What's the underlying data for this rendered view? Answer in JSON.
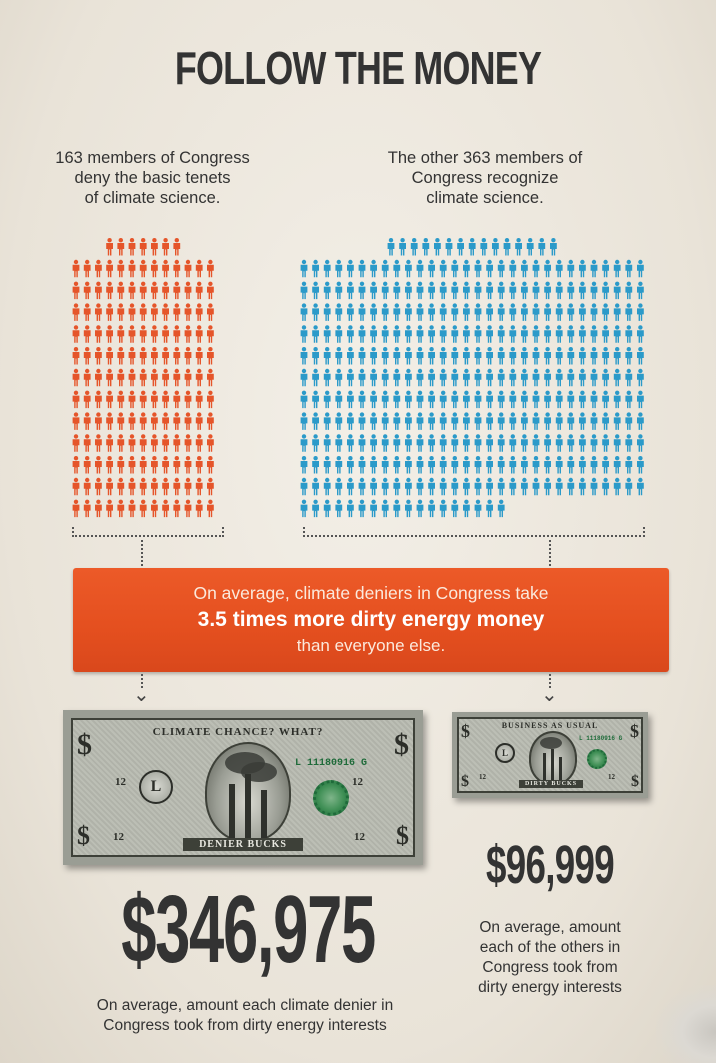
{
  "title": "FOLLOW THE MONEY",
  "left_group": {
    "caption_lines": [
      "163 members of Congress",
      "deny the basic tenets",
      "of climate science."
    ],
    "count": 163,
    "color": "#e5552a",
    "icon": "person-icon"
  },
  "right_group": {
    "caption_lines": [
      "The other 363 members of",
      "Congress recognize",
      "climate science."
    ],
    "count": 363,
    "color": "#2b9ac9",
    "icon": "person-icon"
  },
  "banner": {
    "line1": "On average, climate deniers in Congress take",
    "line2": "3.5 times more dirty energy money",
    "line3": "than everyone else.",
    "color": "#e5552a"
  },
  "left_bill": {
    "top_text": "CLIMATE CHANCE? WHAT?",
    "bottom_text": "DENIER BUCKS",
    "serial": "L 11180916 G",
    "denomination": "12",
    "seal_letter": "L"
  },
  "right_bill": {
    "top_text": "BUSINESS AS USUAL",
    "bottom_text": "DIRTY BUCKS",
    "serial": "L 11180916 G",
    "denomination": "12",
    "seal_letter": "L"
  },
  "left_amount": {
    "value": "$346,975",
    "description_lines": [
      "On average, amount each climate denier in",
      "Congress took from dirty energy interests"
    ]
  },
  "right_amount": {
    "value": "$96,999",
    "description_lines": [
      "On average, amount",
      "each of the others in",
      "Congress took from",
      "dirty energy interests"
    ]
  }
}
